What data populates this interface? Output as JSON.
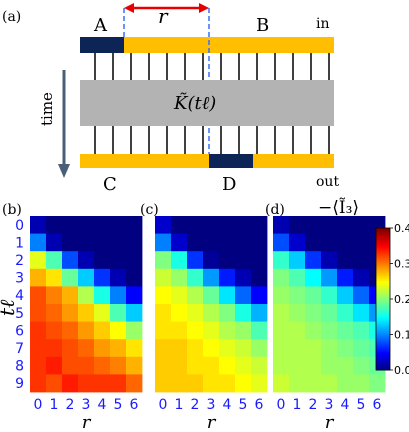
{
  "figure": {
    "panel_labels": [
      "(a)",
      "(b)",
      "(c)",
      "(d)"
    ],
    "schematic": {
      "label_A": "A",
      "label_B": "B",
      "label_C": "C",
      "label_D": "D",
      "label_in": "in",
      "label_out": "out",
      "label_r": "r",
      "label_time": "time",
      "center_label": "K̃(tℓ)"
    },
    "colorbar": {
      "title": "−⟨Ĩ₃⟩",
      "ticks": [
        "0.0",
        "0.1",
        "0.2",
        "0.3",
        "0.4"
      ],
      "range": [
        0.0,
        0.4
      ],
      "colormap": "jet"
    },
    "colors": {
      "bar_yellow": "#ffbf00",
      "bar_navy": "#0d2457",
      "block_gray": "#b3b3b3",
      "arrow_red": "#e60000",
      "dashed_blue": "#3a6ff7",
      "tick_blue": "#1a1aff"
    }
  },
  "chart_data": [
    {
      "type": "heatmap",
      "panel": "(b)",
      "xlabel": "r",
      "ylabel": "tℓ",
      "x": [
        "0",
        "1",
        "2",
        "3",
        "4",
        "5",
        "6"
      ],
      "y": [
        "0",
        "1",
        "2",
        "3",
        "4",
        "5",
        "6",
        "7",
        "8",
        "9"
      ],
      "z": [
        [
          0.02,
          0.0,
          0.0,
          0.0,
          0.0,
          0.0,
          0.0
        ],
        [
          0.1,
          0.02,
          0.0,
          0.0,
          0.0,
          0.0,
          0.0
        ],
        [
          0.24,
          0.18,
          0.08,
          0.02,
          0.0,
          0.0,
          0.0
        ],
        [
          0.28,
          0.26,
          0.19,
          0.13,
          0.07,
          0.02,
          0.0
        ],
        [
          0.32,
          0.3,
          0.28,
          0.22,
          0.16,
          0.1,
          0.05
        ],
        [
          0.32,
          0.31,
          0.29,
          0.27,
          0.24,
          0.18,
          0.13
        ],
        [
          0.33,
          0.32,
          0.31,
          0.29,
          0.27,
          0.25,
          0.21
        ],
        [
          0.33,
          0.33,
          0.32,
          0.31,
          0.29,
          0.28,
          0.26
        ],
        [
          0.33,
          0.34,
          0.32,
          0.32,
          0.31,
          0.3,
          0.28
        ],
        [
          0.33,
          0.32,
          0.34,
          0.33,
          0.33,
          0.33,
          0.31
        ]
      ],
      "zlim": [
        0.0,
        0.4
      ]
    },
    {
      "type": "heatmap",
      "panel": "(c)",
      "xlabel": "r",
      "ylabel": "",
      "x": [
        "0",
        "1",
        "2",
        "3",
        "4",
        "5",
        "6"
      ],
      "y": [
        "0",
        "1",
        "2",
        "3",
        "4",
        "5",
        "6",
        "7",
        "8",
        "9"
      ],
      "z": [
        [
          0.03,
          0.0,
          0.0,
          0.0,
          0.0,
          0.0,
          0.0
        ],
        [
          0.1,
          0.03,
          0.0,
          0.0,
          0.0,
          0.0,
          0.0
        ],
        [
          0.2,
          0.16,
          0.07,
          0.01,
          0.0,
          0.0,
          0.0
        ],
        [
          0.23,
          0.21,
          0.17,
          0.11,
          0.06,
          0.02,
          0.0
        ],
        [
          0.25,
          0.24,
          0.22,
          0.19,
          0.14,
          0.09,
          0.05
        ],
        [
          0.26,
          0.25,
          0.24,
          0.22,
          0.2,
          0.16,
          0.12
        ],
        [
          0.26,
          0.26,
          0.25,
          0.24,
          0.22,
          0.21,
          0.18
        ],
        [
          0.27,
          0.27,
          0.26,
          0.25,
          0.24,
          0.23,
          0.21
        ],
        [
          0.27,
          0.27,
          0.26,
          0.26,
          0.25,
          0.24,
          0.23
        ],
        [
          0.27,
          0.27,
          0.27,
          0.26,
          0.26,
          0.25,
          0.24
        ]
      ],
      "zlim": [
        0.0,
        0.4
      ]
    },
    {
      "type": "heatmap",
      "panel": "(d)",
      "xlabel": "r",
      "ylabel": "",
      "x": [
        "0",
        "1",
        "2",
        "3",
        "4",
        "5",
        "6"
      ],
      "y": [
        "0",
        "1",
        "2",
        "3",
        "4",
        "5",
        "6",
        "7",
        "8",
        "9"
      ],
      "z": [
        [
          0.02,
          0.0,
          0.0,
          0.0,
          0.0,
          0.0,
          0.0
        ],
        [
          0.08,
          0.03,
          0.0,
          0.0,
          0.0,
          0.0,
          0.0
        ],
        [
          0.17,
          0.13,
          0.07,
          0.02,
          0.0,
          0.0,
          0.0
        ],
        [
          0.2,
          0.18,
          0.15,
          0.11,
          0.06,
          0.02,
          0.0
        ],
        [
          0.21,
          0.2,
          0.19,
          0.17,
          0.13,
          0.09,
          0.05
        ],
        [
          0.22,
          0.21,
          0.2,
          0.19,
          0.17,
          0.14,
          0.11
        ],
        [
          0.22,
          0.22,
          0.21,
          0.2,
          0.19,
          0.18,
          0.16
        ],
        [
          0.22,
          0.22,
          0.22,
          0.21,
          0.2,
          0.19,
          0.18
        ],
        [
          0.22,
          0.22,
          0.22,
          0.21,
          0.21,
          0.2,
          0.19
        ],
        [
          0.23,
          0.22,
          0.22,
          0.22,
          0.21,
          0.21,
          0.2
        ]
      ],
      "zlim": [
        0.0,
        0.4
      ]
    }
  ]
}
